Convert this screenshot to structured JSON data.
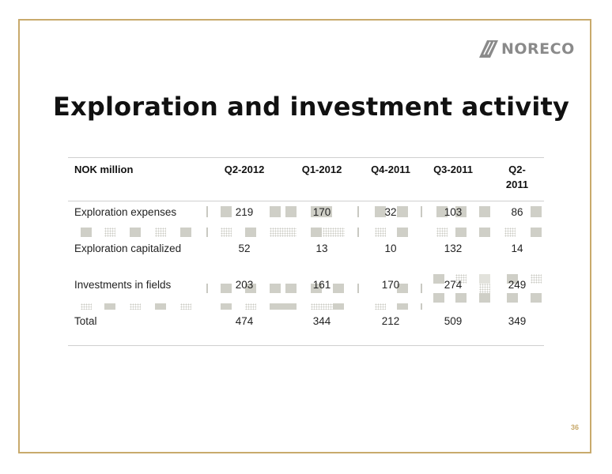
{
  "brand": {
    "name": "NORECO"
  },
  "slide": {
    "title": "Exploration and investment activity",
    "page_number": "36"
  },
  "table": {
    "unit_header": "NOK million",
    "columns": [
      "Q2-2012",
      "Q1-2012",
      "Q4-2011",
      "Q3-2011",
      "Q2-2011"
    ],
    "last_column_lines": [
      "Q2-",
      "2011"
    ],
    "rows": [
      {
        "label": "Exploration expenses",
        "values": [
          "219",
          "170",
          "32",
          "103",
          "86"
        ]
      },
      {
        "label": "Exploration capitalized",
        "values": [
          "52",
          "13",
          "10",
          "132",
          "14"
        ]
      },
      {
        "label": "Investments in fields",
        "values": [
          "203",
          "161",
          "170",
          "274",
          "249"
        ]
      },
      {
        "label": "Total",
        "values": [
          "474",
          "344",
          "212",
          "509",
          "349"
        ]
      }
    ]
  },
  "colors": {
    "frame": "#c8aa6c",
    "rule": "#cfcfcf",
    "logo": "#8a8a8a"
  }
}
